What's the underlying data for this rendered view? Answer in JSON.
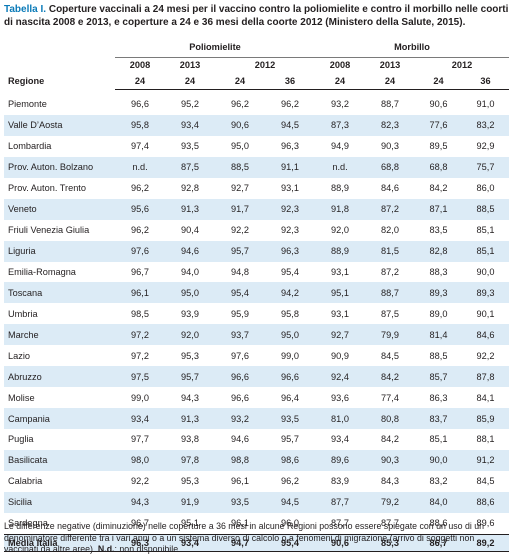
{
  "caption": {
    "label": "Tabella I.",
    "text": "Coperture vaccinali a 24 mesi per il vaccino contro la poliomielite e contro il morbillo nelle coorti di nascita 2008 e 2013, e coperture a 24 e 36 mesi della coorte 2012 (Ministero della Salute, 2015)."
  },
  "header": {
    "polio": "Poliomielite",
    "morbillo": "Morbillo",
    "regione": "Regione",
    "y2008": "2008",
    "y2013": "2013",
    "y2012": "2012",
    "m24": "24",
    "m36": "36"
  },
  "rows": [
    {
      "regione": "Piemonte",
      "v": [
        "96,6",
        "95,2",
        "96,2",
        "96,2",
        "93,2",
        "88,7",
        "90,6",
        "91,0"
      ]
    },
    {
      "regione": "Valle D’Aosta",
      "v": [
        "95,8",
        "93,4",
        "90,6",
        "94,5",
        "87,3",
        "82,3",
        "77,6",
        "83,2"
      ]
    },
    {
      "regione": "Lombardia",
      "v": [
        "97,4",
        "93,5",
        "95,0",
        "96,3",
        "94,9",
        "90,3",
        "89,5",
        "92,9"
      ]
    },
    {
      "regione": "Prov. Auton. Bolzano",
      "v": [
        "n.d.",
        "87,5",
        "88,5",
        "91,1",
        "n.d.",
        "68,8",
        "68,8",
        "75,7"
      ]
    },
    {
      "regione": "Prov. Auton. Trento",
      "v": [
        "96,2",
        "92,8",
        "92,7",
        "93,1",
        "88,9",
        "84,6",
        "84,2",
        "86,0"
      ]
    },
    {
      "regione": "Veneto",
      "v": [
        "95,6",
        "91,3",
        "91,7",
        "92,3",
        "91,8",
        "87,2",
        "87,1",
        "88,5"
      ]
    },
    {
      "regione": "Friuli Venezia Giulia",
      "v": [
        "96,2",
        "90,4",
        "92,2",
        "92,3",
        "92,0",
        "82,0",
        "83,5",
        "85,1"
      ]
    },
    {
      "regione": "Liguria",
      "v": [
        "97,6",
        "94,6",
        "95,7",
        "96,3",
        "88,9",
        "81,5",
        "82,8",
        "85,1"
      ]
    },
    {
      "regione": "Emilia-Romagna",
      "v": [
        "96,7",
        "94,0",
        "94,8",
        "95,4",
        "93,1",
        "87,2",
        "88,3",
        "90,0"
      ]
    },
    {
      "regione": "Toscana",
      "v": [
        "96,1",
        "95,0",
        "95,4",
        "94,2",
        "95,1",
        "88,7",
        "89,3",
        "89,3"
      ]
    },
    {
      "regione": "Umbria",
      "v": [
        "98,5",
        "93,9",
        "95,9",
        "95,8",
        "93,1",
        "87,5",
        "89,0",
        "90,1"
      ]
    },
    {
      "regione": "Marche",
      "v": [
        "97,2",
        "92,0",
        "93,7",
        "95,0",
        "92,7",
        "79,9",
        "81,4",
        "84,6"
      ]
    },
    {
      "regione": "Lazio",
      "v": [
        "97,2",
        "95,3",
        "97,6",
        "99,0",
        "90,9",
        "84,5",
        "88,5",
        "92,2"
      ]
    },
    {
      "regione": "Abruzzo",
      "v": [
        "97,5",
        "95,7",
        "96,6",
        "96,6",
        "92,4",
        "84,2",
        "85,7",
        "87,8"
      ]
    },
    {
      "regione": "Molise",
      "v": [
        "99,0",
        "94,3",
        "96,6",
        "96,4",
        "93,6",
        "77,4",
        "86,3",
        "84,1"
      ]
    },
    {
      "regione": "Campania",
      "v": [
        "93,4",
        "91,3",
        "93,2",
        "93,5",
        "81,0",
        "80,8",
        "83,7",
        "85,9"
      ]
    },
    {
      "regione": "Puglia",
      "v": [
        "97,7",
        "93,8",
        "94,6",
        "95,7",
        "93,4",
        "84,2",
        "85,1",
        "88,1"
      ]
    },
    {
      "regione": "Basilicata",
      "v": [
        "98,0",
        "97,8",
        "98,8",
        "98,6",
        "89,6",
        "90,3",
        "90,0",
        "91,2"
      ]
    },
    {
      "regione": "Calabria",
      "v": [
        "92,2",
        "95,3",
        "96,1",
        "96,2",
        "83,9",
        "84,3",
        "83,2",
        "84,5"
      ]
    },
    {
      "regione": "Sicilia",
      "v": [
        "94,3",
        "91,9",
        "93,5",
        "94,5",
        "87,7",
        "79,2",
        "84,0",
        "88,6"
      ]
    },
    {
      "regione": "Sardegna",
      "v": [
        "96,7",
        "95,1",
        "96,1",
        "96,0",
        "87,7",
        "87,7",
        "88,6",
        "89,6"
      ]
    }
  ],
  "average": {
    "regione": "Media Italia",
    "v": [
      "96,3",
      "93,4",
      "94,7",
      "95,4",
      "90,6",
      "85,3",
      "86,7",
      "89,2"
    ]
  },
  "note": {
    "text1": "Le differenze negative (diminuzione) nelle coperture a 36 mesi in alcune Regioni possono essere spiegate con un uso di un denominatore differente tra i vari anni o a un sistema diverso di calcolo o a fenomeni di migrazione (arrivo di soggetti non vaccinati da altre aree).",
    "nd_label": "N.d.",
    "text2": ": non disponibile."
  }
}
